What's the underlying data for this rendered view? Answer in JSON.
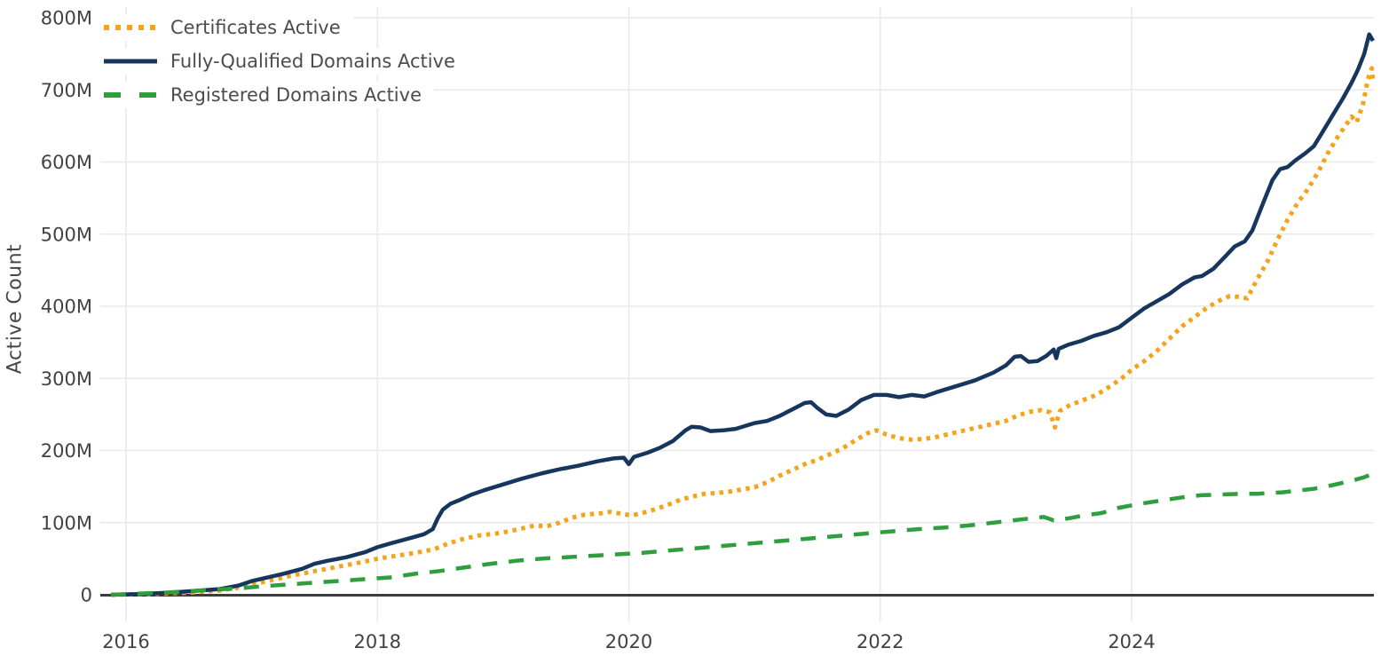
{
  "chart_data": {
    "type": "line",
    "title": "",
    "xlabel": "",
    "ylabel": "Active Count",
    "unit": "M",
    "ylim": [
      0,
      800
    ],
    "x_domain": [
      2015.88,
      2025.92
    ],
    "grid": true,
    "legend_position": "top-left",
    "y_ticks": [
      {
        "value": 0,
        "label": "0"
      },
      {
        "value": 100,
        "label": "100M"
      },
      {
        "value": 200,
        "label": "200M"
      },
      {
        "value": 300,
        "label": "300M"
      },
      {
        "value": 400,
        "label": "400M"
      },
      {
        "value": 500,
        "label": "500M"
      },
      {
        "value": 600,
        "label": "600M"
      },
      {
        "value": 700,
        "label": "700M"
      },
      {
        "value": 800,
        "label": "800M"
      }
    ],
    "x_ticks": [
      {
        "value": 2016,
        "label": "2016"
      },
      {
        "value": 2018,
        "label": "2018"
      },
      {
        "value": 2020,
        "label": "2020"
      },
      {
        "value": 2022,
        "label": "2022"
      },
      {
        "value": 2024,
        "label": "2024"
      }
    ],
    "colors": {
      "grid": "#e9e9e9",
      "zero_axis": "#3d3d3d",
      "tick_text": "#424242",
      "legend_text": "#4c4c4c",
      "background": "#ffffff"
    },
    "series": [
      {
        "name": "Certificates Active",
        "color": "#F5A31B",
        "style": "dotted",
        "points": [
          [
            2015.88,
            0
          ],
          [
            2016.2,
            1
          ],
          [
            2016.5,
            3
          ],
          [
            2016.75,
            6
          ],
          [
            2016.9,
            10
          ],
          [
            2017.0,
            14
          ],
          [
            2017.15,
            20
          ],
          [
            2017.3,
            26
          ],
          [
            2017.45,
            31
          ],
          [
            2017.6,
            36
          ],
          [
            2017.75,
            41
          ],
          [
            2017.9,
            46
          ],
          [
            2018.0,
            50
          ],
          [
            2018.15,
            54
          ],
          [
            2018.3,
            58
          ],
          [
            2018.45,
            63
          ],
          [
            2018.55,
            70
          ],
          [
            2018.65,
            76
          ],
          [
            2018.8,
            82
          ],
          [
            2018.95,
            85
          ],
          [
            2019.05,
            88
          ],
          [
            2019.15,
            92
          ],
          [
            2019.25,
            96
          ],
          [
            2019.35,
            95
          ],
          [
            2019.45,
            100
          ],
          [
            2019.55,
            107
          ],
          [
            2019.65,
            111
          ],
          [
            2019.78,
            113
          ],
          [
            2019.85,
            115
          ],
          [
            2019.95,
            112
          ],
          [
            2020.02,
            110
          ],
          [
            2020.1,
            113
          ],
          [
            2020.2,
            118
          ],
          [
            2020.3,
            124
          ],
          [
            2020.4,
            131
          ],
          [
            2020.5,
            136
          ],
          [
            2020.6,
            140
          ],
          [
            2020.7,
            141
          ],
          [
            2020.8,
            143
          ],
          [
            2020.9,
            146
          ],
          [
            2021.0,
            149
          ],
          [
            2021.1,
            156
          ],
          [
            2021.2,
            165
          ],
          [
            2021.3,
            173
          ],
          [
            2021.4,
            181
          ],
          [
            2021.5,
            187
          ],
          [
            2021.6,
            195
          ],
          [
            2021.7,
            203
          ],
          [
            2021.8,
            214
          ],
          [
            2021.9,
            224
          ],
          [
            2021.97,
            228
          ],
          [
            2022.05,
            222
          ],
          [
            2022.15,
            217
          ],
          [
            2022.25,
            215
          ],
          [
            2022.35,
            216
          ],
          [
            2022.45,
            219
          ],
          [
            2022.6,
            225
          ],
          [
            2022.75,
            231
          ],
          [
            2022.9,
            237
          ],
          [
            2023.0,
            241
          ],
          [
            2023.1,
            249
          ],
          [
            2023.2,
            254
          ],
          [
            2023.28,
            256
          ],
          [
            2023.35,
            253
          ],
          [
            2023.39,
            232
          ],
          [
            2023.43,
            255
          ],
          [
            2023.5,
            262
          ],
          [
            2023.6,
            269
          ],
          [
            2023.72,
            277
          ],
          [
            2023.82,
            288
          ],
          [
            2023.92,
            300
          ],
          [
            2024.0,
            312
          ],
          [
            2024.1,
            324
          ],
          [
            2024.2,
            338
          ],
          [
            2024.3,
            355
          ],
          [
            2024.4,
            372
          ],
          [
            2024.5,
            385
          ],
          [
            2024.6,
            398
          ],
          [
            2024.7,
            408
          ],
          [
            2024.78,
            414
          ],
          [
            2024.85,
            413
          ],
          [
            2024.92,
            411
          ],
          [
            2025.0,
            438
          ],
          [
            2025.08,
            462
          ],
          [
            2025.16,
            492
          ],
          [
            2025.24,
            520
          ],
          [
            2025.32,
            543
          ],
          [
            2025.4,
            562
          ],
          [
            2025.48,
            585
          ],
          [
            2025.56,
            612
          ],
          [
            2025.64,
            635
          ],
          [
            2025.7,
            650
          ],
          [
            2025.75,
            663
          ],
          [
            2025.79,
            655
          ],
          [
            2025.84,
            680
          ],
          [
            2025.88,
            715
          ],
          [
            2025.91,
            730
          ],
          [
            2025.92,
            712
          ]
        ]
      },
      {
        "name": "Fully-Qualified Domains Active",
        "color": "#17365E",
        "style": "solid",
        "points": [
          [
            2015.88,
            0
          ],
          [
            2016.1,
            1
          ],
          [
            2016.35,
            3
          ],
          [
            2016.6,
            6
          ],
          [
            2016.75,
            8
          ],
          [
            2016.9,
            13
          ],
          [
            2017.0,
            19
          ],
          [
            2017.1,
            23
          ],
          [
            2017.25,
            29
          ],
          [
            2017.4,
            36
          ],
          [
            2017.5,
            43
          ],
          [
            2017.6,
            47
          ],
          [
            2017.75,
            52
          ],
          [
            2017.9,
            59
          ],
          [
            2018.0,
            66
          ],
          [
            2018.1,
            71
          ],
          [
            2018.25,
            78
          ],
          [
            2018.37,
            84
          ],
          [
            2018.44,
            91
          ],
          [
            2018.48,
            106
          ],
          [
            2018.52,
            118
          ],
          [
            2018.58,
            126
          ],
          [
            2018.65,
            131
          ],
          [
            2018.75,
            139
          ],
          [
            2018.85,
            145
          ],
          [
            2019.0,
            153
          ],
          [
            2019.15,
            161
          ],
          [
            2019.3,
            168
          ],
          [
            2019.45,
            174
          ],
          [
            2019.6,
            179
          ],
          [
            2019.75,
            185
          ],
          [
            2019.88,
            189
          ],
          [
            2019.96,
            190
          ],
          [
            2020.0,
            181
          ],
          [
            2020.04,
            191
          ],
          [
            2020.15,
            197
          ],
          [
            2020.25,
            204
          ],
          [
            2020.35,
            213
          ],
          [
            2020.45,
            228
          ],
          [
            2020.5,
            233
          ],
          [
            2020.57,
            232
          ],
          [
            2020.65,
            227
          ],
          [
            2020.75,
            228
          ],
          [
            2020.85,
            230
          ],
          [
            2021.0,
            238
          ],
          [
            2021.1,
            241
          ],
          [
            2021.2,
            248
          ],
          [
            2021.3,
            257
          ],
          [
            2021.4,
            266
          ],
          [
            2021.45,
            267
          ],
          [
            2021.5,
            259
          ],
          [
            2021.57,
            250
          ],
          [
            2021.65,
            248
          ],
          [
            2021.75,
            257
          ],
          [
            2021.85,
            270
          ],
          [
            2021.95,
            277
          ],
          [
            2022.05,
            277
          ],
          [
            2022.15,
            274
          ],
          [
            2022.25,
            277
          ],
          [
            2022.35,
            275
          ],
          [
            2022.45,
            281
          ],
          [
            2022.6,
            289
          ],
          [
            2022.75,
            297
          ],
          [
            2022.9,
            308
          ],
          [
            2023.0,
            318
          ],
          [
            2023.07,
            330
          ],
          [
            2023.12,
            331
          ],
          [
            2023.18,
            323
          ],
          [
            2023.25,
            324
          ],
          [
            2023.32,
            331
          ],
          [
            2023.38,
            340
          ],
          [
            2023.4,
            328
          ],
          [
            2023.42,
            341
          ],
          [
            2023.5,
            347
          ],
          [
            2023.6,
            352
          ],
          [
            2023.7,
            359
          ],
          [
            2023.8,
            364
          ],
          [
            2023.9,
            371
          ],
          [
            2024.0,
            384
          ],
          [
            2024.1,
            397
          ],
          [
            2024.2,
            407
          ],
          [
            2024.3,
            417
          ],
          [
            2024.4,
            430
          ],
          [
            2024.5,
            440
          ],
          [
            2024.56,
            442
          ],
          [
            2024.65,
            452
          ],
          [
            2024.75,
            470
          ],
          [
            2024.82,
            483
          ],
          [
            2024.9,
            490
          ],
          [
            2024.96,
            505
          ],
          [
            2025.05,
            545
          ],
          [
            2025.12,
            575
          ],
          [
            2025.18,
            590
          ],
          [
            2025.24,
            593
          ],
          [
            2025.3,
            602
          ],
          [
            2025.38,
            612
          ],
          [
            2025.45,
            622
          ],
          [
            2025.52,
            642
          ],
          [
            2025.6,
            665
          ],
          [
            2025.68,
            688
          ],
          [
            2025.75,
            710
          ],
          [
            2025.8,
            728
          ],
          [
            2025.85,
            750
          ],
          [
            2025.89,
            777
          ],
          [
            2025.92,
            768
          ]
        ]
      },
      {
        "name": "Registered Domains Active",
        "color": "#2E9E3E",
        "style": "dashed",
        "points": [
          [
            2015.88,
            0
          ],
          [
            2016.3,
            3
          ],
          [
            2016.6,
            6
          ],
          [
            2016.9,
            9
          ],
          [
            2017.1,
            12
          ],
          [
            2017.35,
            15
          ],
          [
            2017.6,
            18
          ],
          [
            2017.85,
            21
          ],
          [
            2018.1,
            24
          ],
          [
            2018.3,
            29
          ],
          [
            2018.5,
            33
          ],
          [
            2018.7,
            38
          ],
          [
            2018.9,
            43
          ],
          [
            2019.1,
            47
          ],
          [
            2019.3,
            50
          ],
          [
            2019.5,
            52
          ],
          [
            2019.7,
            54
          ],
          [
            2019.9,
            56
          ],
          [
            2020.1,
            58
          ],
          [
            2020.3,
            61
          ],
          [
            2020.5,
            64
          ],
          [
            2020.7,
            67
          ],
          [
            2020.9,
            70
          ],
          [
            2021.1,
            73
          ],
          [
            2021.3,
            76
          ],
          [
            2021.5,
            79
          ],
          [
            2021.7,
            82
          ],
          [
            2021.9,
            85
          ],
          [
            2022.1,
            88
          ],
          [
            2022.3,
            91
          ],
          [
            2022.5,
            93
          ],
          [
            2022.7,
            96
          ],
          [
            2022.9,
            100
          ],
          [
            2023.05,
            103
          ],
          [
            2023.2,
            106
          ],
          [
            2023.3,
            108
          ],
          [
            2023.38,
            103
          ],
          [
            2023.5,
            106
          ],
          [
            2023.62,
            110
          ],
          [
            2023.75,
            113
          ],
          [
            2023.82,
            116
          ],
          [
            2023.88,
            120
          ],
          [
            2024.0,
            124
          ],
          [
            2024.1,
            127
          ],
          [
            2024.25,
            131
          ],
          [
            2024.4,
            135
          ],
          [
            2024.55,
            138
          ],
          [
            2024.7,
            139
          ],
          [
            2024.85,
            140
          ],
          [
            2025.0,
            140
          ],
          [
            2025.1,
            141
          ],
          [
            2025.2,
            142
          ],
          [
            2025.3,
            144
          ],
          [
            2025.45,
            147
          ],
          [
            2025.6,
            152
          ],
          [
            2025.75,
            158
          ],
          [
            2025.85,
            163
          ],
          [
            2025.92,
            168
          ]
        ]
      }
    ]
  }
}
